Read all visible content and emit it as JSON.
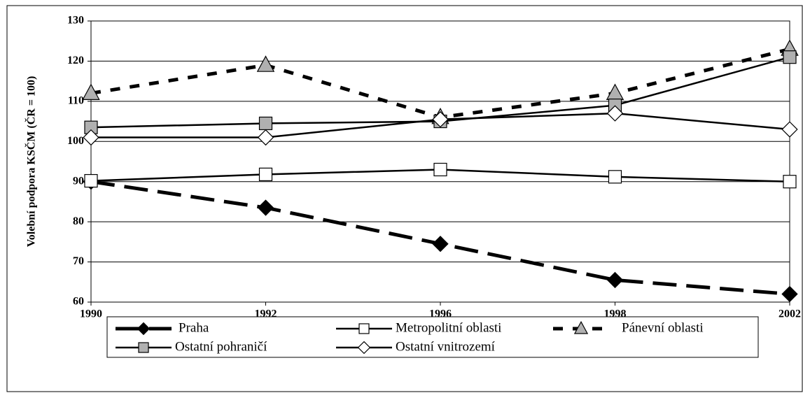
{
  "chart_data": {
    "type": "line",
    "ylabel": "Volební podpora KSČM (ČR = 100)",
    "categories": [
      "1990",
      "1992",
      "1996",
      "1998",
      "2002"
    ],
    "ylim": [
      60,
      130
    ],
    "yticks": [
      60,
      70,
      80,
      90,
      100,
      110,
      120,
      130
    ],
    "grid": true,
    "legend": "bottom",
    "series": [
      {
        "name": "Praha",
        "color": "#000000",
        "line_style": "dashed",
        "marker": "diamond",
        "marker_color": "#000000",
        "values": [
          90,
          83.5,
          74.5,
          65.5,
          62
        ]
      },
      {
        "name": "Metropolitní oblasti",
        "color": "#000000",
        "line_style": "solid",
        "marker": "square",
        "marker_color": "#ffffff",
        "values": [
          90.2,
          91.8,
          93,
          91.2,
          90
        ]
      },
      {
        "name": "Pánevní oblasti",
        "color": "#000000",
        "line_style": "dotted",
        "marker": "triangle",
        "marker_color": "#b0b0b0",
        "values": [
          112,
          119,
          106,
          112,
          123
        ]
      },
      {
        "name": "Ostatní pohraničí",
        "color": "#000000",
        "line_style": "solid",
        "marker": "square",
        "marker_color": "#b0b0b0",
        "values": [
          103.5,
          104.5,
          105,
          109,
          121
        ]
      },
      {
        "name": "Ostatní vnitrozemí",
        "color": "#000000",
        "line_style": "solid",
        "marker": "diamond",
        "marker_color": "#ffffff",
        "values": [
          101,
          101,
          105.5,
          107,
          103
        ]
      }
    ]
  }
}
